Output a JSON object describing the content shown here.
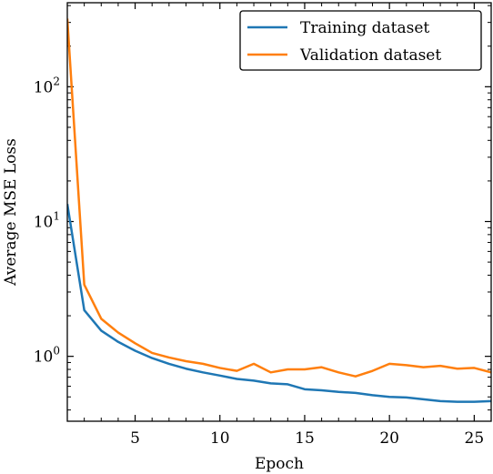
{
  "chart_data": {
    "type": "line",
    "xlabel": "Epoch",
    "ylabel": "Average MSE Loss",
    "xlim": [
      1,
      26
    ],
    "ylim": [
      0.33,
      420
    ],
    "yscale": "log",
    "x_ticks": [
      5,
      10,
      15,
      20,
      25
    ],
    "y_ticks": [
      {
        "value": 1,
        "base": "10",
        "exp": "0"
      },
      {
        "value": 10,
        "base": "10",
        "exp": "1"
      },
      {
        "value": 100,
        "base": "10",
        "exp": "2"
      }
    ],
    "x": [
      1,
      2,
      3,
      4,
      5,
      6,
      7,
      8,
      9,
      10,
      11,
      12,
      13,
      14,
      15,
      16,
      17,
      18,
      19,
      20,
      21,
      22,
      23,
      24,
      25,
      26
    ],
    "legend": {
      "position": "top-right"
    },
    "series": [
      {
        "name": "Training dataset",
        "color": "#1f77b4",
        "values": [
          13.5,
          2.2,
          1.55,
          1.28,
          1.1,
          0.97,
          0.88,
          0.81,
          0.76,
          0.72,
          0.68,
          0.66,
          0.63,
          0.62,
          0.57,
          0.56,
          0.545,
          0.535,
          0.515,
          0.5,
          0.495,
          0.48,
          0.465,
          0.46,
          0.46,
          0.465
        ]
      },
      {
        "name": "Validation dataset",
        "color": "#ff7f0e",
        "values": [
          320,
          3.4,
          1.9,
          1.5,
          1.25,
          1.06,
          0.98,
          0.92,
          0.88,
          0.82,
          0.78,
          0.88,
          0.76,
          0.8,
          0.8,
          0.83,
          0.76,
          0.71,
          0.78,
          0.88,
          0.86,
          0.83,
          0.85,
          0.81,
          0.82,
          0.76
        ]
      }
    ]
  }
}
